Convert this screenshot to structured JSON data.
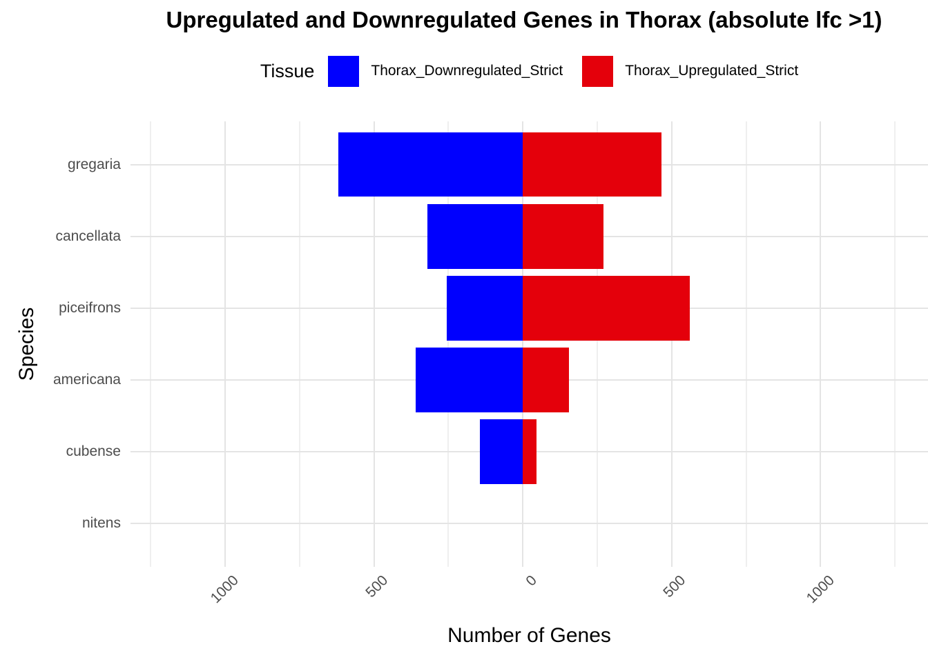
{
  "title": "Upregulated and Downregulated Genes in Thorax (absolute lfc >1)",
  "legend": {
    "title": "Tissue",
    "entries": [
      {
        "label": "Thorax_Downregulated_Strict",
        "color": "#0000fe"
      },
      {
        "label": "Thorax_Upregulated_Strict",
        "color": "#e4000b"
      }
    ]
  },
  "chart_data": {
    "type": "bar",
    "orientation": "horizontal-diverging",
    "title": "Upregulated and Downregulated Genes in Thorax (absolute lfc >1)",
    "xlabel": "Number of Genes",
    "ylabel": "Species",
    "categories": [
      "gregaria",
      "cancellata",
      "piceifrons",
      "americana",
      "cubense",
      "nitens"
    ],
    "series": [
      {
        "name": "Thorax_Downregulated_Strict",
        "color": "#0000fe",
        "direction": "left",
        "values": [
          620,
          320,
          255,
          360,
          145,
          0
        ]
      },
      {
        "name": "Thorax_Upregulated_Strict",
        "color": "#e4000b",
        "direction": "right",
        "values": [
          465,
          270,
          560,
          155,
          45,
          0
        ]
      }
    ],
    "x_ticks": [
      -1000,
      -500,
      0,
      500,
      1000
    ],
    "x_tick_labels": [
      "1000",
      "500",
      "0",
      "500",
      "1000"
    ],
    "xlim": [
      -1318,
      1361
    ],
    "minor_grid_step": 250,
    "grid": true,
    "legend_position": "top",
    "bar_width_fraction": 0.9
  },
  "colors": {
    "grid_major": "#e4e4e4",
    "grid_minor": "#efefef",
    "tick_text": "#4d4d4d",
    "background": "#ffffff"
  }
}
